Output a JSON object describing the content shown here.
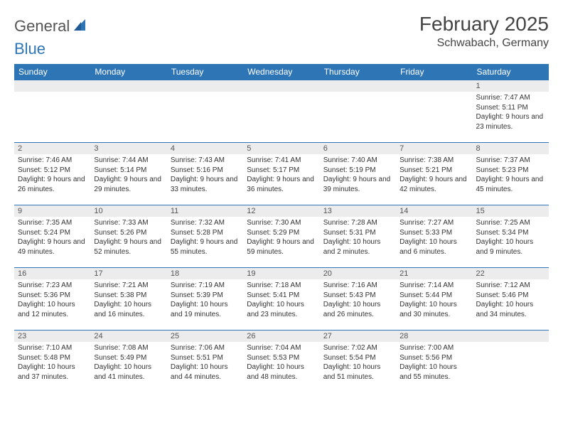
{
  "brand": {
    "part1": "General",
    "part2": "Blue"
  },
  "title": "February 2025",
  "location": "Schwabach, Germany",
  "colors": {
    "header_bg": "#2e75b6",
    "daynum_bg": "#ececec",
    "border": "#2e75b6"
  },
  "weekdays": [
    "Sunday",
    "Monday",
    "Tuesday",
    "Wednesday",
    "Thursday",
    "Friday",
    "Saturday"
  ],
  "weeks": [
    [
      null,
      null,
      null,
      null,
      null,
      null,
      {
        "n": "1",
        "sr": "Sunrise: 7:47 AM",
        "ss": "Sunset: 5:11 PM",
        "dl": "Daylight: 9 hours and 23 minutes."
      }
    ],
    [
      {
        "n": "2",
        "sr": "Sunrise: 7:46 AM",
        "ss": "Sunset: 5:12 PM",
        "dl": "Daylight: 9 hours and 26 minutes."
      },
      {
        "n": "3",
        "sr": "Sunrise: 7:44 AM",
        "ss": "Sunset: 5:14 PM",
        "dl": "Daylight: 9 hours and 29 minutes."
      },
      {
        "n": "4",
        "sr": "Sunrise: 7:43 AM",
        "ss": "Sunset: 5:16 PM",
        "dl": "Daylight: 9 hours and 33 minutes."
      },
      {
        "n": "5",
        "sr": "Sunrise: 7:41 AM",
        "ss": "Sunset: 5:17 PM",
        "dl": "Daylight: 9 hours and 36 minutes."
      },
      {
        "n": "6",
        "sr": "Sunrise: 7:40 AM",
        "ss": "Sunset: 5:19 PM",
        "dl": "Daylight: 9 hours and 39 minutes."
      },
      {
        "n": "7",
        "sr": "Sunrise: 7:38 AM",
        "ss": "Sunset: 5:21 PM",
        "dl": "Daylight: 9 hours and 42 minutes."
      },
      {
        "n": "8",
        "sr": "Sunrise: 7:37 AM",
        "ss": "Sunset: 5:23 PM",
        "dl": "Daylight: 9 hours and 45 minutes."
      }
    ],
    [
      {
        "n": "9",
        "sr": "Sunrise: 7:35 AM",
        "ss": "Sunset: 5:24 PM",
        "dl": "Daylight: 9 hours and 49 minutes."
      },
      {
        "n": "10",
        "sr": "Sunrise: 7:33 AM",
        "ss": "Sunset: 5:26 PM",
        "dl": "Daylight: 9 hours and 52 minutes."
      },
      {
        "n": "11",
        "sr": "Sunrise: 7:32 AM",
        "ss": "Sunset: 5:28 PM",
        "dl": "Daylight: 9 hours and 55 minutes."
      },
      {
        "n": "12",
        "sr": "Sunrise: 7:30 AM",
        "ss": "Sunset: 5:29 PM",
        "dl": "Daylight: 9 hours and 59 minutes."
      },
      {
        "n": "13",
        "sr": "Sunrise: 7:28 AM",
        "ss": "Sunset: 5:31 PM",
        "dl": "Daylight: 10 hours and 2 minutes."
      },
      {
        "n": "14",
        "sr": "Sunrise: 7:27 AM",
        "ss": "Sunset: 5:33 PM",
        "dl": "Daylight: 10 hours and 6 minutes."
      },
      {
        "n": "15",
        "sr": "Sunrise: 7:25 AM",
        "ss": "Sunset: 5:34 PM",
        "dl": "Daylight: 10 hours and 9 minutes."
      }
    ],
    [
      {
        "n": "16",
        "sr": "Sunrise: 7:23 AM",
        "ss": "Sunset: 5:36 PM",
        "dl": "Daylight: 10 hours and 12 minutes."
      },
      {
        "n": "17",
        "sr": "Sunrise: 7:21 AM",
        "ss": "Sunset: 5:38 PM",
        "dl": "Daylight: 10 hours and 16 minutes."
      },
      {
        "n": "18",
        "sr": "Sunrise: 7:19 AM",
        "ss": "Sunset: 5:39 PM",
        "dl": "Daylight: 10 hours and 19 minutes."
      },
      {
        "n": "19",
        "sr": "Sunrise: 7:18 AM",
        "ss": "Sunset: 5:41 PM",
        "dl": "Daylight: 10 hours and 23 minutes."
      },
      {
        "n": "20",
        "sr": "Sunrise: 7:16 AM",
        "ss": "Sunset: 5:43 PM",
        "dl": "Daylight: 10 hours and 26 minutes."
      },
      {
        "n": "21",
        "sr": "Sunrise: 7:14 AM",
        "ss": "Sunset: 5:44 PM",
        "dl": "Daylight: 10 hours and 30 minutes."
      },
      {
        "n": "22",
        "sr": "Sunrise: 7:12 AM",
        "ss": "Sunset: 5:46 PM",
        "dl": "Daylight: 10 hours and 34 minutes."
      }
    ],
    [
      {
        "n": "23",
        "sr": "Sunrise: 7:10 AM",
        "ss": "Sunset: 5:48 PM",
        "dl": "Daylight: 10 hours and 37 minutes."
      },
      {
        "n": "24",
        "sr": "Sunrise: 7:08 AM",
        "ss": "Sunset: 5:49 PM",
        "dl": "Daylight: 10 hours and 41 minutes."
      },
      {
        "n": "25",
        "sr": "Sunrise: 7:06 AM",
        "ss": "Sunset: 5:51 PM",
        "dl": "Daylight: 10 hours and 44 minutes."
      },
      {
        "n": "26",
        "sr": "Sunrise: 7:04 AM",
        "ss": "Sunset: 5:53 PM",
        "dl": "Daylight: 10 hours and 48 minutes."
      },
      {
        "n": "27",
        "sr": "Sunrise: 7:02 AM",
        "ss": "Sunset: 5:54 PM",
        "dl": "Daylight: 10 hours and 51 minutes."
      },
      {
        "n": "28",
        "sr": "Sunrise: 7:00 AM",
        "ss": "Sunset: 5:56 PM",
        "dl": "Daylight: 10 hours and 55 minutes."
      },
      null
    ]
  ]
}
